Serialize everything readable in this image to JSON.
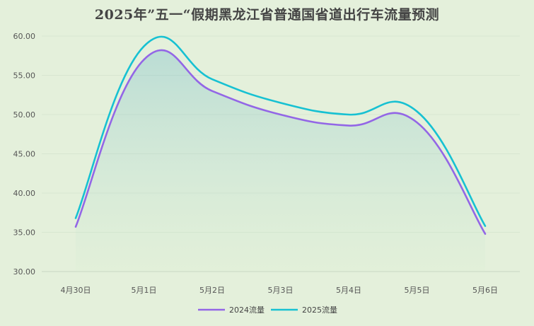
{
  "chart_data": {
    "type": "line",
    "title": "2025年”五一“假期黑龙江省普通国省道出行车流量预测",
    "categories": [
      "4月30日",
      "5月1日",
      "5月2日",
      "5月3日",
      "5月4日",
      "5月5日",
      "5月6日"
    ],
    "series": [
      {
        "name": "2024流量",
        "color": "#9366e6",
        "values": [
          35.7,
          57.0,
          53.0,
          50.0,
          48.6,
          49.0,
          34.8
        ]
      },
      {
        "name": "2025流量",
        "color": "#17c1d2",
        "values": [
          36.8,
          58.7,
          54.5,
          51.5,
          50.0,
          50.4,
          35.8
        ]
      }
    ],
    "ylim": [
      30,
      60
    ],
    "yticks": [
      "30.00",
      "35.00",
      "40.00",
      "45.00",
      "50.00",
      "55.00",
      "60.00"
    ],
    "grid": true,
    "legend": "bottom-center"
  }
}
